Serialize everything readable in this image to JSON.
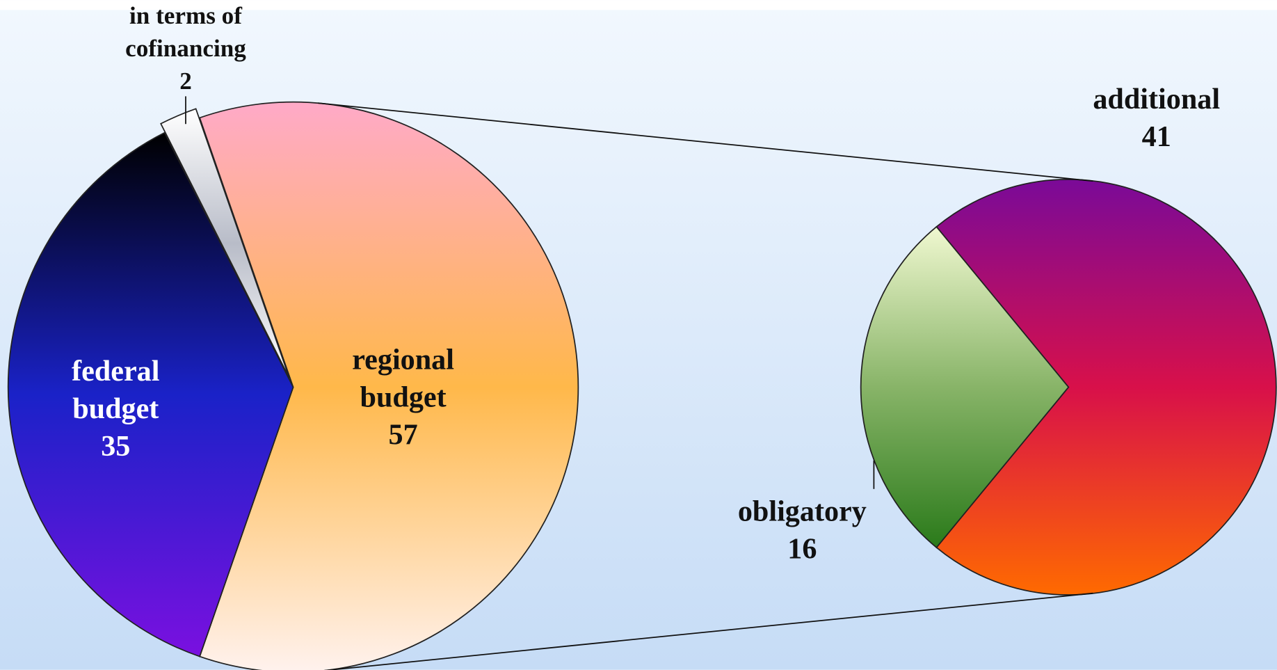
{
  "chart_data": {
    "type": "pie",
    "categories": [
      "regional budget",
      "federal budget",
      "in terms of cofinancing"
    ],
    "values": [
      57,
      35,
      2
    ],
    "colors": [
      [
        "#ffaac8",
        "#ffb84a",
        "#fff2ee"
      ],
      [
        "#000000",
        "#1a22c8",
        "#7a10e0"
      ],
      [
        "#ffffff",
        "#b8bcc8",
        "#ffffff"
      ]
    ],
    "secondary": {
      "categories": [
        "additional",
        "obligatory"
      ],
      "values": [
        41,
        16
      ],
      "colors": [
        [
          "#7a0a98",
          "#d8104a",
          "#ff6a00"
        ],
        [
          "#f0f8d0",
          "#88b468",
          "#2a7a1a"
        ]
      ]
    }
  }
}
